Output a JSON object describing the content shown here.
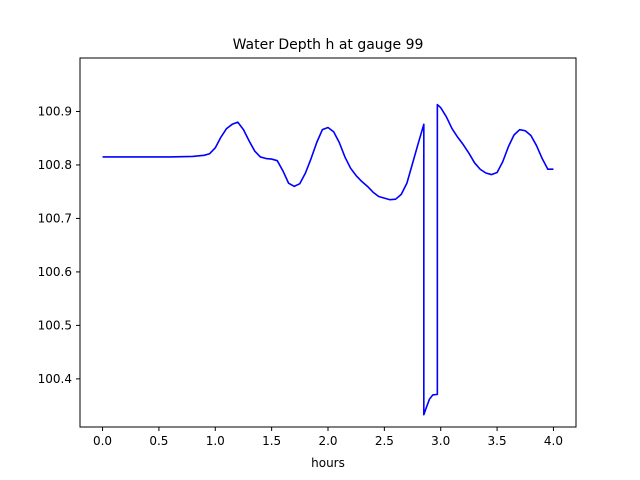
{
  "chart_data": {
    "type": "line",
    "title": "Water Depth h at gauge 99",
    "xlabel": "hours",
    "ylabel": "",
    "xlim": [
      -0.2,
      4.2
    ],
    "ylim": [
      100.31,
      101.0
    ],
    "xticks": [
      0.0,
      0.5,
      1.0,
      1.5,
      2.0,
      2.5,
      3.0,
      3.5,
      4.0
    ],
    "xtick_labels": [
      "0.0",
      "0.5",
      "1.0",
      "1.5",
      "2.0",
      "2.5",
      "3.0",
      "3.5",
      "4.0"
    ],
    "yticks": [
      100.4,
      100.5,
      100.6,
      100.7,
      100.8,
      100.9
    ],
    "ytick_labels": [
      "100.4",
      "100.5",
      "100.6",
      "100.7",
      "100.8",
      "100.9"
    ],
    "grid": false,
    "legend": "none",
    "series": [
      {
        "color": "#0000ff",
        "x": [
          0.0,
          0.3,
          0.6,
          0.8,
          0.9,
          0.95,
          1.0,
          1.05,
          1.1,
          1.15,
          1.2,
          1.25,
          1.3,
          1.35,
          1.4,
          1.45,
          1.5,
          1.55,
          1.6,
          1.65,
          1.7,
          1.75,
          1.8,
          1.85,
          1.9,
          1.95,
          2.0,
          2.05,
          2.1,
          2.15,
          2.2,
          2.25,
          2.3,
          2.35,
          2.4,
          2.45,
          2.5,
          2.55,
          2.6,
          2.65,
          2.7,
          2.75,
          2.8,
          2.85,
          2.85,
          2.87,
          2.9,
          2.93,
          2.97,
          2.97,
          3.0,
          3.05,
          3.1,
          3.15,
          3.2,
          3.25,
          3.3,
          3.35,
          3.4,
          3.45,
          3.5,
          3.55,
          3.6,
          3.65,
          3.7,
          3.75,
          3.8,
          3.85,
          3.9,
          3.95,
          4.0
        ],
        "y": [
          100.815,
          100.815,
          100.815,
          100.816,
          100.818,
          100.821,
          100.832,
          100.852,
          100.868,
          100.876,
          100.88,
          100.866,
          100.845,
          100.826,
          100.815,
          100.812,
          100.811,
          100.808,
          100.789,
          100.766,
          100.76,
          100.765,
          100.785,
          100.812,
          100.842,
          100.866,
          100.87,
          100.862,
          100.842,
          100.815,
          100.794,
          100.78,
          100.769,
          100.76,
          100.749,
          100.741,
          100.738,
          100.735,
          100.736,
          100.745,
          100.766,
          100.803,
          100.84,
          100.876,
          100.333,
          100.345,
          100.362,
          100.37,
          100.371,
          100.913,
          100.907,
          100.89,
          100.868,
          100.852,
          100.838,
          100.822,
          100.804,
          100.792,
          100.785,
          100.782,
          100.786,
          100.806,
          100.834,
          100.856,
          100.866,
          100.864,
          100.855,
          100.836,
          100.812,
          100.792,
          100.792
        ]
      }
    ]
  }
}
